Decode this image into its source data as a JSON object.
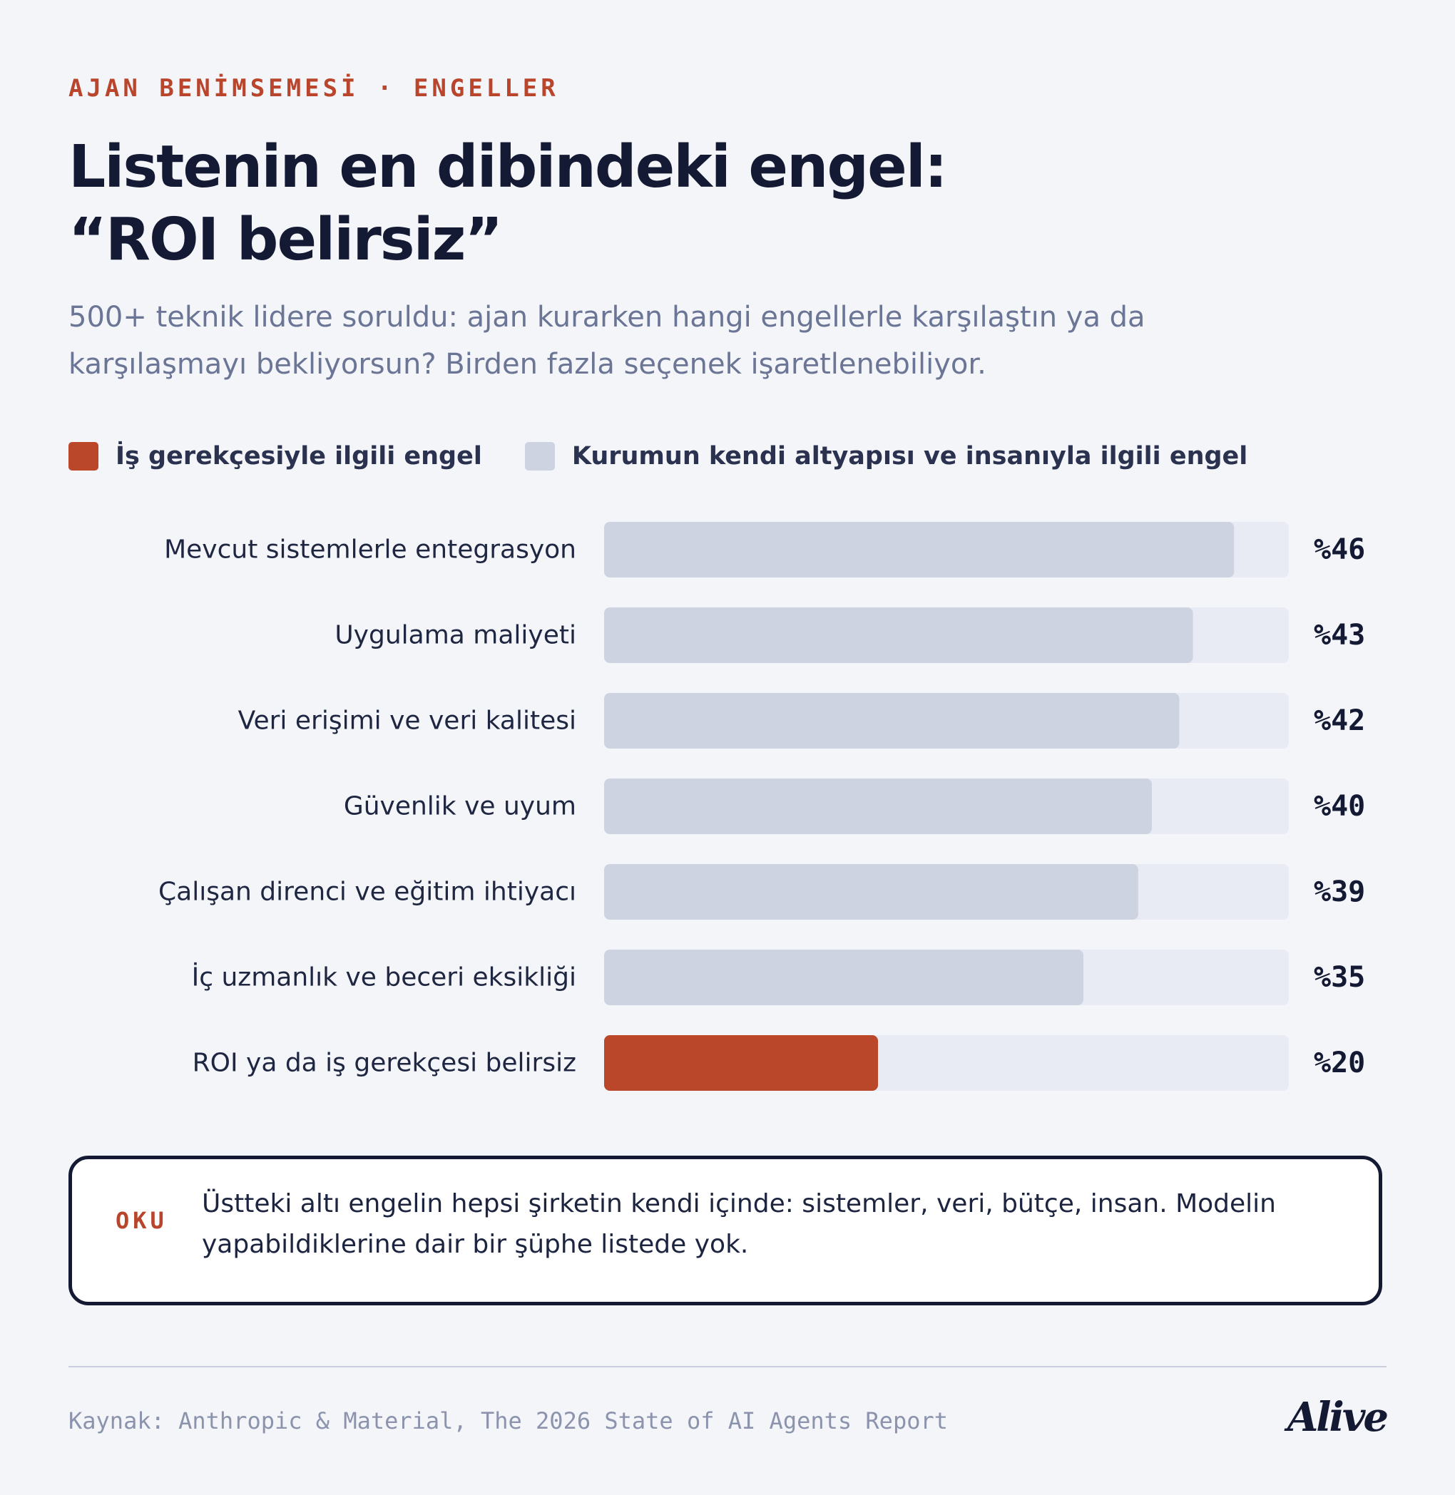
{
  "header": {
    "eyebrow": "AJAN BENİMSEMESİ · ENGELLER",
    "title_line1": "Listenin en dibindeki engel:",
    "title_line2": "“ROI belirsiz”",
    "subtitle_line1": "500+ teknik lidere soruldu: ajan kurarken hangi engellerle karşılaştın ya da",
    "subtitle_line2": "karşılaşmayı bekliyorsun? Birden fazla seçenek işaretlenebiliyor."
  },
  "legend": {
    "business_label": "İş gerekçesiyle ilgili engel",
    "internal_label": "Kurumun kendi altyapısı ve insanıyla ilgili engel"
  },
  "colors": {
    "business": "#bb472b",
    "internal": "#cdd3e1",
    "track": "#e8ebf3",
    "text_dark": "#141a33",
    "accent": "#b8452c"
  },
  "chart_data": {
    "type": "bar",
    "orientation": "horizontal",
    "categories": [
      "Mevcut sistemlerle entegrasyon",
      "Uygulama maliyeti",
      "Veri erişimi ve veri kalitesi",
      "Güvenlik ve uyum",
      "Çalışan direnci ve eğitim ihtiyacı",
      "İç uzmanlık ve beceri eksikliği",
      "ROI ya da iş gerekçesi belirsiz"
    ],
    "values": [
      46,
      43,
      42,
      40,
      39,
      35,
      20
    ],
    "value_labels": [
      "%46",
      "%43",
      "%42",
      "%40",
      "%39",
      "%35",
      "%20"
    ],
    "groups": [
      "internal",
      "internal",
      "internal",
      "internal",
      "internal",
      "internal",
      "business"
    ],
    "xlim": [
      0,
      50
    ],
    "grid": false,
    "legend_position": "top-left"
  },
  "note": {
    "label": "OKU",
    "text_line1": "Üstteki altı engelin hepsi şirketin kendi içinde: sistemler, veri, bütçe, insan. Modelin",
    "text_line2": "yapabildiklerine dair bir şüphe listede yok."
  },
  "footer": {
    "source": "Kaynak: Anthropic & Material, The 2026 State of AI Agents Report",
    "logo": "Alive"
  }
}
